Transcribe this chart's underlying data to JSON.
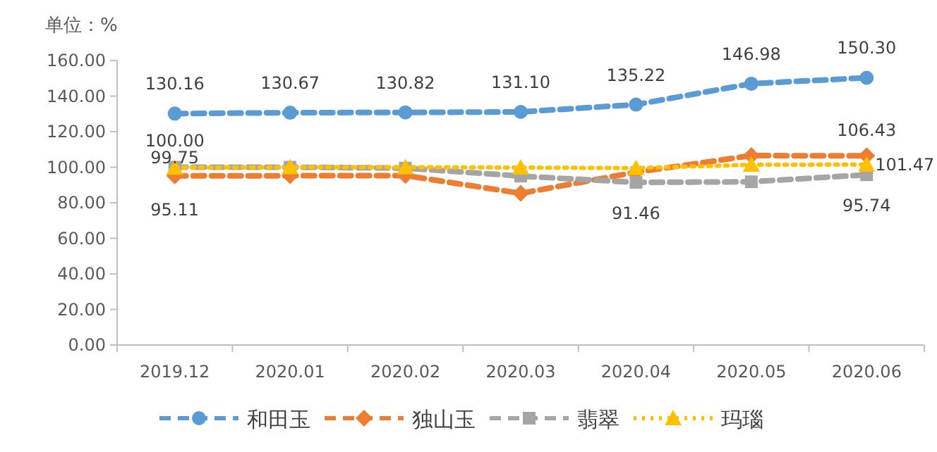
{
  "chart_data": {
    "type": "line",
    "ylabel": "单位：%",
    "categories": [
      "2019.12",
      "2020.01",
      "2020.02",
      "2020.03",
      "2020.04",
      "2020.05",
      "2020.06"
    ],
    "ylim": [
      0,
      160
    ],
    "yticks": [
      {
        "value": 0,
        "label": "0.00"
      },
      {
        "value": 20,
        "label": "20.00"
      },
      {
        "value": 40,
        "label": "40.00"
      },
      {
        "value": 60,
        "label": "60.00"
      },
      {
        "value": 80,
        "label": "80.00"
      },
      {
        "value": 100,
        "label": "100.00"
      },
      {
        "value": 120,
        "label": "120.00"
      },
      {
        "value": 140,
        "label": "140.00"
      },
      {
        "value": 160,
        "label": "160.00"
      }
    ],
    "legend": "bottom",
    "series": [
      {
        "name": "和田玉",
        "color": "#5b9bd5",
        "marker": "circle",
        "line_style": "dashed",
        "values": [
          130.16,
          130.67,
          130.82,
          131.1,
          135.22,
          146.98,
          150.3
        ],
        "value_labels": [
          "130.16",
          "130.67",
          "130.82",
          "131.10",
          "135.22",
          "146.98",
          "150.30"
        ]
      },
      {
        "name": "独山玉",
        "color": "#ed7d31",
        "marker": "diamond",
        "line_style": "dashed",
        "values": [
          95.11,
          95.2,
          95.3,
          85.3,
          97.2,
          106.5,
          106.43
        ],
        "value_labels": [
          "95.11",
          null,
          null,
          null,
          null,
          null,
          "106.43"
        ]
      },
      {
        "name": "翡翠",
        "color": "#a5a5a5",
        "marker": "square",
        "line_style": "dashed",
        "values": [
          100.0,
          100.0,
          99.5,
          95.0,
          91.46,
          91.8,
          95.74
        ],
        "value_labels": [
          "100.00",
          null,
          null,
          null,
          "91.46",
          null,
          "95.74"
        ]
      },
      {
        "name": "玛瑙",
        "color": "#ffc000",
        "marker": "triangle",
        "line_style": "dotted",
        "values": [
          99.75,
          100.0,
          100.0,
          99.8,
          99.5,
          101.4,
          101.47
        ],
        "value_labels": [
          "99.75",
          null,
          null,
          null,
          null,
          null,
          "101.47"
        ]
      }
    ]
  }
}
